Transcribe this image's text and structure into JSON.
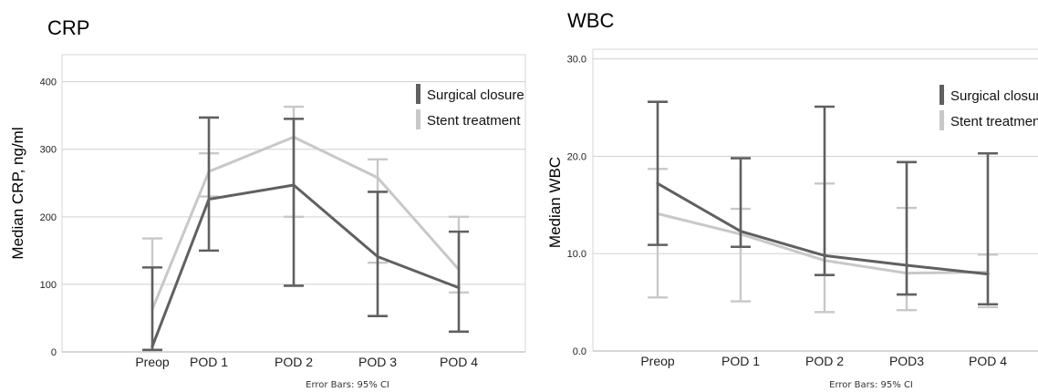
{
  "chart_data": [
    {
      "type": "line",
      "title": "CRP",
      "xlabel": "",
      "ylabel": "Median CRP, ng/ml",
      "categories": [
        "Preop",
        "POD 1",
        "POD 2",
        "POD 3",
        "POD 4"
      ],
      "ylim": [
        0,
        440
      ],
      "yticks": [
        0,
        100,
        200,
        300,
        400
      ],
      "ytick_labels": [
        "0",
        "100",
        "200",
        "300",
        "400"
      ],
      "grid": true,
      "legend": "top-right",
      "note": "Error Bars: 95% CI",
      "series": [
        {
          "name": "Surgical closure",
          "color": "#606060",
          "values": [
            8,
            226,
            247,
            141,
            95
          ],
          "ci_low": [
            3,
            150,
            98,
            53,
            30
          ],
          "ci_high": [
            125,
            347,
            345,
            237,
            178
          ]
        },
        {
          "name": "Stent treatment",
          "color": "#c8c8c8",
          "values": [
            63,
            267,
            318,
            258,
            122
          ],
          "ci_low": [
            3,
            230,
            200,
            132,
            88
          ],
          "ci_high": [
            168,
            294,
            363,
            285,
            200
          ]
        }
      ]
    },
    {
      "type": "line",
      "title": "WBC",
      "xlabel": "",
      "ylabel": "Median WBC",
      "categories": [
        "Preop",
        "POD 1",
        "POD 2",
        "POD3",
        "POD 4"
      ],
      "ylim": [
        0,
        31
      ],
      "yticks": [
        0,
        10,
        20,
        30
      ],
      "ytick_labels": [
        "0.0",
        "10.0",
        "20.0",
        "30.0"
      ],
      "grid": true,
      "legend": "top-right",
      "note": "Error Bars: 95% CI",
      "series": [
        {
          "name": "Surgical closure",
          "color": "#606060",
          "values": [
            17.2,
            12.3,
            9.8,
            8.8,
            7.9
          ],
          "ci_low": [
            10.9,
            10.7,
            7.8,
            5.8,
            4.8
          ],
          "ci_high": [
            25.6,
            19.8,
            25.1,
            19.4,
            20.3
          ]
        },
        {
          "name": "Stent treatment",
          "color": "#c8c8c8",
          "values": [
            14.1,
            12.0,
            9.3,
            8.0,
            8.1
          ],
          "ci_low": [
            5.5,
            5.1,
            4.0,
            4.2,
            4.5
          ],
          "ci_high": [
            18.7,
            14.6,
            17.2,
            14.7,
            9.9
          ]
        }
      ]
    }
  ]
}
